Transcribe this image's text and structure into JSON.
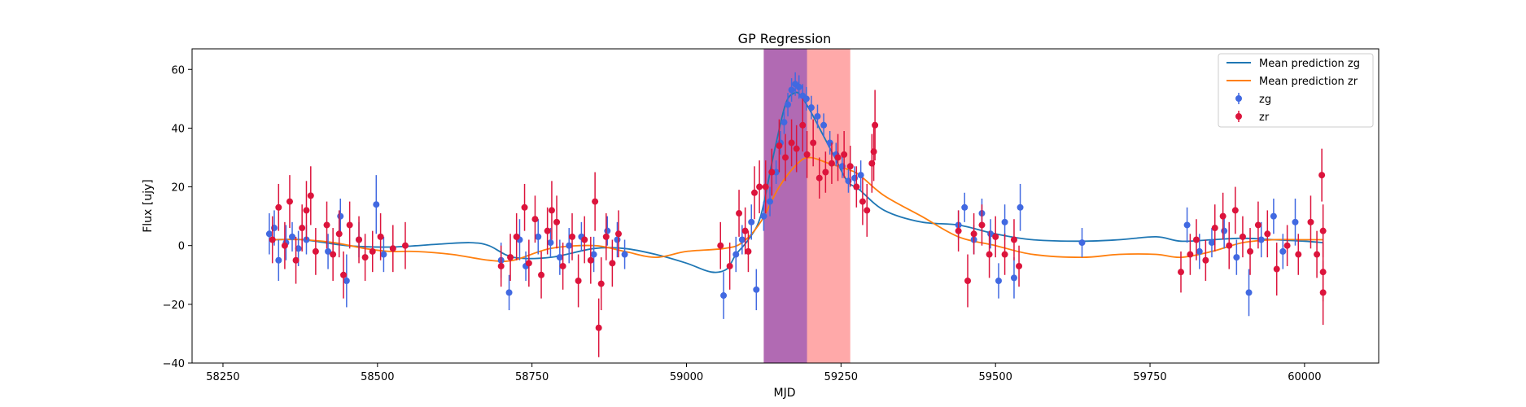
{
  "chart_data": {
    "type": "scatter",
    "title": "GP Regression",
    "xlabel": "MJD",
    "ylabel": "Flux [ujy]",
    "xlim": [
      58200,
      60120
    ],
    "ylim": [
      -40,
      67
    ],
    "xticks": [
      58250,
      58500,
      58750,
      59000,
      59250,
      59500,
      59750,
      60000
    ],
    "yticks": [
      -40,
      -20,
      0,
      20,
      40,
      60
    ],
    "grid": false,
    "legend_position": "top-right",
    "legend": [
      {
        "label": "Mean prediction zg",
        "kind": "line",
        "color": "#1f77b4"
      },
      {
        "label": "Mean prediction zr",
        "kind": "line",
        "color": "#ff7f0e"
      },
      {
        "label": "zg",
        "kind": "errorbar",
        "color": "#4169e1"
      },
      {
        "label": "zr",
        "kind": "errorbar",
        "color": "#dc143c"
      }
    ],
    "shaded_regions": [
      {
        "x0": 59125,
        "x1": 59265,
        "color": "#ff9a9a",
        "opacity": 0.85
      },
      {
        "x0": 59125,
        "x1": 59195,
        "color": "#9b59b6",
        "opacity": 0.78
      }
    ],
    "series": [
      {
        "name": "Mean prediction zg",
        "type": "line",
        "color": "#1f77b4",
        "x": [
          58330,
          58380,
          58450,
          58520,
          58600,
          58650,
          58680,
          58720,
          58780,
          58850,
          58900,
          58950,
          59000,
          59040,
          59065,
          59080,
          59100,
          59120,
          59140,
          59160,
          59175,
          59185,
          59200,
          59220,
          59240,
          59260,
          59280,
          59320,
          59380,
          59440,
          59500,
          59560,
          59640,
          59700,
          59760,
          59800,
          59850,
          59900,
          59950,
          60000,
          60030
        ],
        "y": [
          2,
          2,
          0,
          -0.5,
          0.5,
          1,
          0,
          -4,
          -4,
          -1,
          -1,
          -3,
          -6,
          -9,
          -8,
          -3,
          2,
          10,
          30,
          48,
          52,
          51,
          46,
          38,
          30,
          22,
          19,
          12,
          8,
          7,
          4,
          2,
          1.5,
          2,
          3,
          1.5,
          2,
          2.5,
          2,
          1.5,
          1
        ]
      },
      {
        "name": "Mean prediction zr",
        "type": "line",
        "color": "#ff7f0e",
        "x": [
          58330,
          58380,
          58430,
          58480,
          58520,
          58560,
          58620,
          58680,
          58720,
          58780,
          58850,
          58900,
          58950,
          59000,
          59060,
          59090,
          59120,
          59150,
          59180,
          59200,
          59230,
          59260,
          59280,
          59320,
          59380,
          59440,
          59500,
          59560,
          59640,
          59700,
          59760,
          59800,
          59850,
          59900,
          59950,
          60000,
          60030
        ],
        "y": [
          2,
          2,
          1,
          -1,
          -2,
          -2,
          -3,
          -5,
          -5,
          -1,
          0,
          -2,
          -4,
          -2,
          -1,
          1,
          8,
          20,
          28,
          30,
          28,
          26,
          24,
          17,
          10,
          3,
          0,
          -3,
          -4,
          -3,
          -3,
          -4,
          -2,
          1,
          2,
          2,
          2
        ]
      },
      {
        "name": "zg",
        "type": "errorbar",
        "color": "#4169e1",
        "points": [
          [
            58325,
            4,
            7
          ],
          [
            58333,
            6,
            6
          ],
          [
            58340,
            -5,
            7
          ],
          [
            58352,
            1,
            6
          ],
          [
            58362,
            3,
            5
          ],
          [
            58372,
            -1,
            6
          ],
          [
            58385,
            2,
            5
          ],
          [
            58420,
            -2,
            6
          ],
          [
            58440,
            10,
            6
          ],
          [
            58450,
            -12,
            9
          ],
          [
            58470,
            2,
            6
          ],
          [
            58498,
            14,
            10
          ],
          [
            58510,
            -3,
            6
          ],
          [
            58700,
            -5,
            6
          ],
          [
            58713,
            -16,
            6
          ],
          [
            58730,
            2,
            7
          ],
          [
            58740,
            -7,
            5
          ],
          [
            58760,
            3,
            6
          ],
          [
            58780,
            1,
            5
          ],
          [
            58795,
            -4,
            6
          ],
          [
            58810,
            0,
            6
          ],
          [
            58830,
            3,
            5
          ],
          [
            58850,
            -3,
            6
          ],
          [
            58872,
            5,
            5
          ],
          [
            58888,
            2,
            6
          ],
          [
            58900,
            -3,
            5
          ],
          [
            59060,
            -17,
            8
          ],
          [
            59080,
            -3,
            6
          ],
          [
            59090,
            2,
            5
          ],
          [
            59105,
            8,
            6
          ],
          [
            59113,
            -15,
            7
          ],
          [
            59125,
            10,
            5
          ],
          [
            59135,
            15,
            5
          ],
          [
            59145,
            25,
            4
          ],
          [
            59152,
            35,
            4
          ],
          [
            59158,
            42,
            4
          ],
          [
            59164,
            48,
            4
          ],
          [
            59170,
            53,
            4
          ],
          [
            59176,
            55,
            4
          ],
          [
            59182,
            54,
            4
          ],
          [
            59188,
            51,
            4
          ],
          [
            59194,
            50,
            4
          ],
          [
            59202,
            47,
            4
          ],
          [
            59212,
            44,
            4
          ],
          [
            59222,
            41,
            4
          ],
          [
            59232,
            35,
            4
          ],
          [
            59242,
            31,
            4
          ],
          [
            59252,
            27,
            4
          ],
          [
            59262,
            22,
            4
          ],
          [
            59272,
            23,
            4
          ],
          [
            59282,
            24,
            5
          ],
          [
            59440,
            7,
            5
          ],
          [
            59450,
            13,
            5
          ],
          [
            59465,
            2,
            5
          ],
          [
            59478,
            11,
            5
          ],
          [
            59492,
            4,
            5
          ],
          [
            59505,
            -12,
            6
          ],
          [
            59515,
            8,
            6
          ],
          [
            59530,
            -11,
            7
          ],
          [
            59540,
            13,
            8
          ],
          [
            59640,
            1,
            5
          ],
          [
            59810,
            7,
            6
          ],
          [
            59830,
            -2,
            6
          ],
          [
            59850,
            1,
            5
          ],
          [
            59870,
            5,
            6
          ],
          [
            59890,
            -4,
            6
          ],
          [
            59910,
            -16,
            8
          ],
          [
            59930,
            2,
            6
          ],
          [
            59950,
            10,
            6
          ],
          [
            59965,
            -2,
            6
          ],
          [
            59985,
            8,
            8
          ]
        ]
      },
      {
        "name": "zr",
        "type": "errorbar",
        "color": "#dc143c",
        "points": [
          [
            58330,
            2,
            8
          ],
          [
            58340,
            13,
            8
          ],
          [
            58350,
            0,
            8
          ],
          [
            58358,
            15,
            9
          ],
          [
            58368,
            -5,
            8
          ],
          [
            58378,
            6,
            8
          ],
          [
            58385,
            12,
            10
          ],
          [
            58392,
            17,
            10
          ],
          [
            58400,
            -2,
            8
          ],
          [
            58418,
            7,
            8
          ],
          [
            58428,
            -3,
            9
          ],
          [
            58438,
            4,
            8
          ],
          [
            58445,
            -10,
            8
          ],
          [
            58455,
            7,
            8
          ],
          [
            58470,
            2,
            8
          ],
          [
            58480,
            -4,
            8
          ],
          [
            58492,
            -2,
            7
          ],
          [
            58505,
            3,
            8
          ],
          [
            58525,
            -1,
            8
          ],
          [
            58545,
            0,
            8
          ],
          [
            58700,
            -7,
            7
          ],
          [
            58715,
            -4,
            8
          ],
          [
            58725,
            3,
            8
          ],
          [
            58738,
            13,
            8
          ],
          [
            58745,
            -6,
            8
          ],
          [
            58755,
            9,
            8
          ],
          [
            58765,
            -10,
            8
          ],
          [
            58775,
            5,
            8
          ],
          [
            58782,
            12,
            10
          ],
          [
            58790,
            8,
            9
          ],
          [
            58800,
            -7,
            8
          ],
          [
            58815,
            3,
            8
          ],
          [
            58825,
            -12,
            9
          ],
          [
            58835,
            2,
            8
          ],
          [
            58845,
            -5,
            8
          ],
          [
            58852,
            15,
            10
          ],
          [
            58858,
            -28,
            10
          ],
          [
            58862,
            -13,
            9
          ],
          [
            58870,
            3,
            8
          ],
          [
            58880,
            -6,
            8
          ],
          [
            58890,
            4,
            8
          ],
          [
            59055,
            0,
            8
          ],
          [
            59070,
            -7,
            8
          ],
          [
            59085,
            11,
            8
          ],
          [
            59095,
            5,
            8
          ],
          [
            59100,
            -2,
            7
          ],
          [
            59110,
            18,
            9
          ],
          [
            59118,
            20,
            9
          ],
          [
            59128,
            20,
            9
          ],
          [
            59138,
            25,
            8
          ],
          [
            59150,
            34,
            9
          ],
          [
            59160,
            30,
            8
          ],
          [
            59170,
            35,
            8
          ],
          [
            59178,
            33,
            8
          ],
          [
            59188,
            41,
            9
          ],
          [
            59195,
            31,
            8
          ],
          [
            59205,
            35,
            8
          ],
          [
            59215,
            23,
            7
          ],
          [
            59225,
            25,
            7
          ],
          [
            59235,
            28,
            7
          ],
          [
            59245,
            30,
            8
          ],
          [
            59255,
            31,
            8
          ],
          [
            59265,
            27,
            7
          ],
          [
            59275,
            20,
            7
          ],
          [
            59285,
            15,
            8
          ],
          [
            59292,
            12,
            9
          ],
          [
            59300,
            28,
            10
          ],
          [
            59303,
            32,
            10
          ],
          [
            59305,
            41,
            12
          ],
          [
            59440,
            5,
            7
          ],
          [
            59455,
            -12,
            9
          ],
          [
            59465,
            4,
            7
          ],
          [
            59478,
            7,
            7
          ],
          [
            59490,
            -3,
            8
          ],
          [
            59500,
            3,
            7
          ],
          [
            59515,
            -3,
            7
          ],
          [
            59530,
            2,
            7
          ],
          [
            59538,
            -7,
            7
          ],
          [
            59800,
            -9,
            7
          ],
          [
            59815,
            -3,
            7
          ],
          [
            59825,
            2,
            7
          ],
          [
            59840,
            -5,
            7
          ],
          [
            59855,
            6,
            8
          ],
          [
            59868,
            10,
            8
          ],
          [
            59878,
            0,
            8
          ],
          [
            59888,
            12,
            8
          ],
          [
            59900,
            3,
            7
          ],
          [
            59912,
            -2,
            8
          ],
          [
            59925,
            7,
            8
          ],
          [
            59940,
            4,
            8
          ],
          [
            59955,
            -8,
            9
          ],
          [
            59972,
            0,
            7
          ],
          [
            59990,
            -3,
            7
          ],
          [
            60010,
            8,
            9
          ],
          [
            60020,
            -3,
            8
          ],
          [
            60028,
            24,
            9
          ],
          [
            60030,
            5,
            9
          ],
          [
            60030,
            -16,
            11
          ],
          [
            60030,
            -9,
            10
          ]
        ]
      }
    ]
  }
}
